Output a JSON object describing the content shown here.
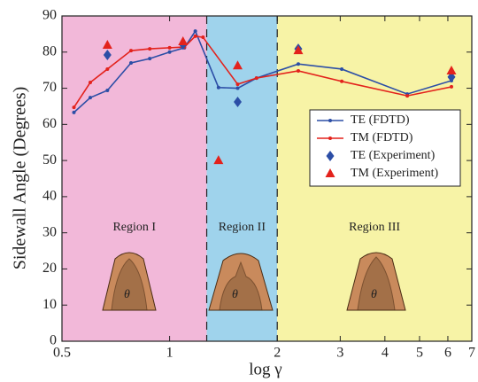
{
  "chart_data": {
    "type": "line",
    "x_label": "log γ",
    "y_label": "Sidewall Angle (Degrees)",
    "x_scale": "log",
    "xlim": [
      0.5,
      7
    ],
    "xticks": [
      0.5,
      1,
      2,
      3,
      4,
      5,
      6,
      7
    ],
    "ylim": [
      0,
      90
    ],
    "yticks": [
      0,
      10,
      20,
      30,
      40,
      50,
      60,
      70,
      80,
      90
    ],
    "legend_position": "right",
    "regions": [
      {
        "label": "Region I",
        "range": [
          0.5,
          1.27
        ],
        "color": "#f2b8d9"
      },
      {
        "label": "Region II",
        "range": [
          1.27,
          2
        ],
        "color": "#9fd3ec"
      },
      {
        "label": "Region III",
        "range": [
          2,
          7
        ],
        "color": "#f7f3a6"
      }
    ],
    "shape_labels": [
      "θ",
      "θ",
      "θ"
    ],
    "series": [
      {
        "name": "TE (FDTD)",
        "color": "#2c4ea6",
        "style": "line",
        "x": [
          0.54,
          0.6,
          0.67,
          0.78,
          0.88,
          1.0,
          1.1,
          1.18,
          1.37,
          1.55,
          1.75,
          2.29,
          3.03,
          4.62,
          6.14
        ],
        "values": [
          63.3,
          67.4,
          69.4,
          77,
          78.2,
          80,
          81.2,
          85.8,
          70.2,
          70,
          72.8,
          76.7,
          75.3,
          68.4,
          72.1
        ]
      },
      {
        "name": "TM (FDTD)",
        "color": "#e3221c",
        "style": "line",
        "x": [
          0.54,
          0.6,
          0.67,
          0.78,
          0.88,
          1.0,
          1.1,
          1.18,
          1.24,
          1.55,
          1.75,
          2.29,
          3.03,
          4.62,
          6.14
        ],
        "values": [
          64.7,
          71.6,
          75.3,
          80.4,
          80.9,
          81.2,
          81.4,
          84.4,
          84.1,
          71.1,
          72.8,
          74.8,
          71.9,
          67.9,
          70.4
        ]
      },
      {
        "name": "TE (Experiment)",
        "color": "#2c4ea6",
        "style": "diamond",
        "x": [
          0.67,
          1.09,
          1.55,
          2.29,
          6.14
        ],
        "values": [
          79.2,
          82.1,
          66.2,
          80.9,
          73.1
        ]
      },
      {
        "name": "TM (Experiment)",
        "color": "#e3221c",
        "style": "triangle",
        "x": [
          0.67,
          1.09,
          1.37,
          1.55,
          2.29,
          6.14
        ],
        "values": [
          81.9,
          82.9,
          50,
          76.2,
          80.4,
          74.8
        ]
      }
    ]
  }
}
